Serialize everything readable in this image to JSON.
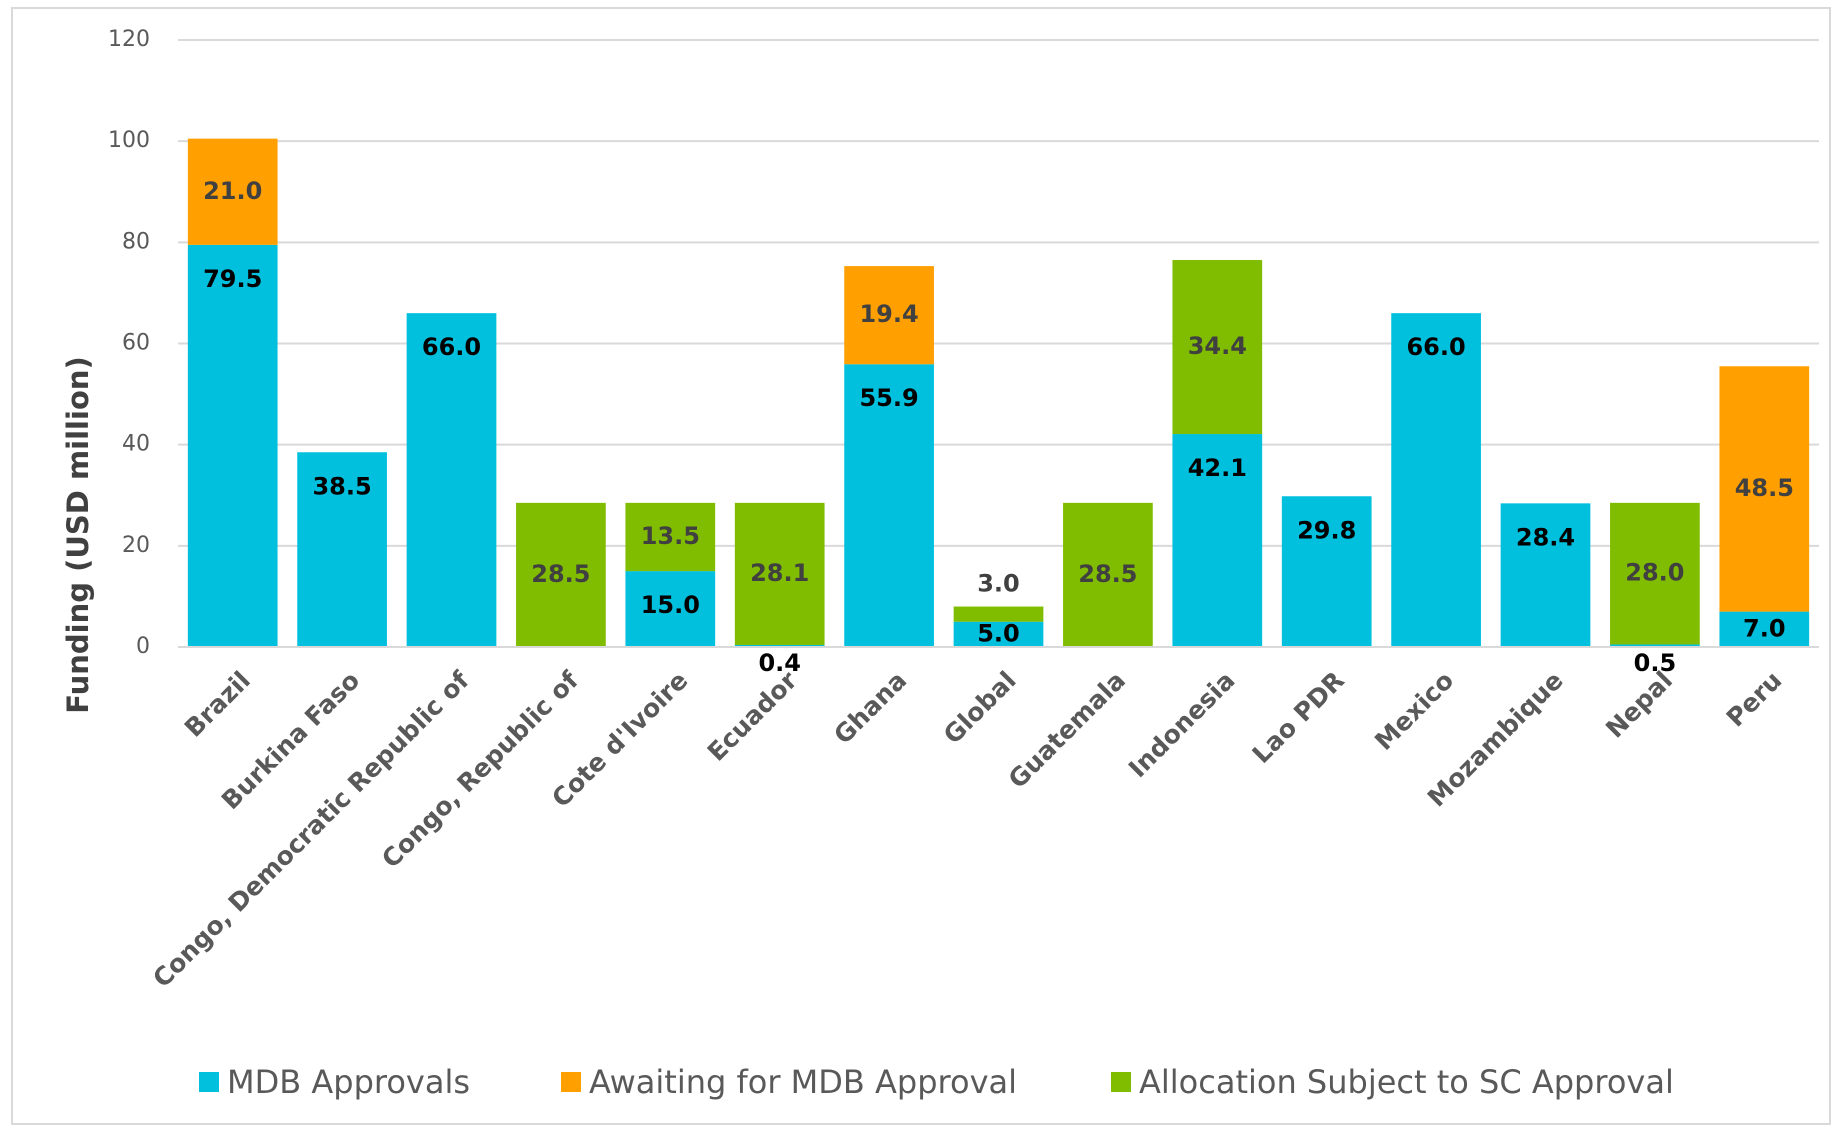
{
  "chart_data": {
    "type": "stacked_bar",
    "y_label": "Funding (USD million)",
    "categories": [
      "Brazil",
      "Burkina Faso",
      "Congo, Democratic Republic of",
      "Congo, Republic of",
      "Cote d'Ivoire",
      "Ecuador",
      "Ghana",
      "Global",
      "Guatemala",
      "Indonesia",
      "Lao PDR",
      "Mexico",
      "Mozambique",
      "Nepal",
      "Peru"
    ],
    "series": [
      {
        "name": "MDB Approvals",
        "color": "#00c0de",
        "values": [
          79.5,
          38.5,
          66.0,
          null,
          15.0,
          0.4,
          55.9,
          5.0,
          null,
          42.1,
          29.8,
          66.0,
          28.4,
          0.5,
          7.0
        ],
        "value_labels": [
          "79.5",
          "38.5",
          "66.0",
          null,
          "15.0",
          "0.4",
          "55.9",
          "5.0",
          null,
          "42.1",
          "29.8",
          "66.0",
          "28.4",
          "0.5",
          "7.0"
        ]
      },
      {
        "name": "Awaiting for MDB Approval",
        "color": "#ffa000",
        "values": [
          21.0,
          null,
          null,
          null,
          null,
          null,
          19.4,
          null,
          null,
          null,
          null,
          null,
          null,
          null,
          48.5
        ],
        "value_labels": [
          "21.0",
          null,
          null,
          null,
          null,
          null,
          "19.4",
          null,
          null,
          null,
          null,
          null,
          null,
          null,
          "48.5"
        ]
      },
      {
        "name": "Allocation Subject to SC Approval",
        "color": "#80bc00",
        "values": [
          null,
          null,
          null,
          28.5,
          13.5,
          28.1,
          null,
          3.0,
          28.5,
          34.4,
          null,
          null,
          null,
          28.0,
          null
        ],
        "value_labels": [
          null,
          null,
          null,
          "28.5",
          "13.5",
          "28.1",
          null,
          "3.0",
          "28.5",
          "34.4",
          null,
          null,
          null,
          "28.0",
          null
        ]
      }
    ],
    "ylim": [
      0,
      120
    ],
    "yticks": [
      0,
      20,
      40,
      60,
      80,
      100,
      120
    ],
    "grid": true,
    "legend": "bottom"
  }
}
